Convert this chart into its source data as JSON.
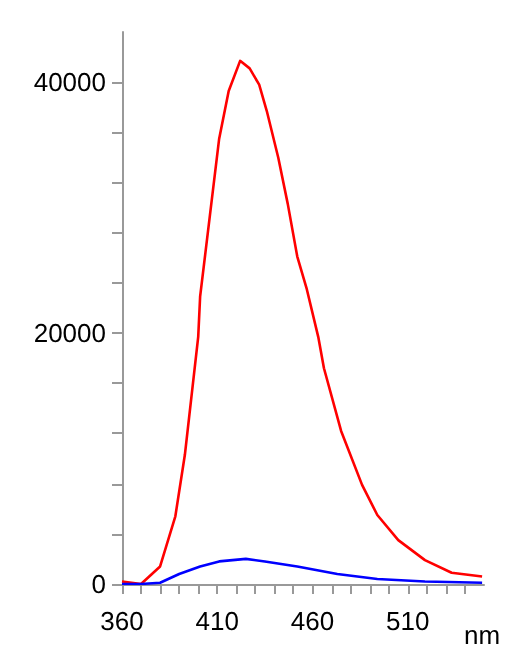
{
  "chart_data": {
    "type": "line",
    "xlabel": "nm",
    "x": [
      360,
      370,
      380,
      388,
      393,
      400,
      401,
      406,
      411,
      416,
      422,
      427,
      432,
      436,
      442,
      447,
      452,
      457,
      463,
      466,
      475,
      486,
      494,
      505,
      519,
      533,
      549
    ],
    "xlim": [
      360,
      550
    ],
    "ylim": [
      0,
      44000
    ],
    "xticks": [
      360,
      {
        "value": 370,
        "label": null
      },
      {
        "value": 380,
        "label": null
      },
      {
        "value": 390,
        "label": null
      },
      {
        "value": 400,
        "label": null
      },
      410,
      {
        "value": 420,
        "label": null
      },
      {
        "value": 430,
        "label": null
      },
      {
        "value": 440,
        "label": null
      },
      {
        "value": 450,
        "label": null
      },
      460,
      {
        "value": 470,
        "label": null
      },
      {
        "value": 480,
        "label": null
      },
      {
        "value": 490,
        "label": null
      },
      {
        "value": 500,
        "label": null
      },
      510,
      {
        "value": 520,
        "label": null
      },
      {
        "value": 530,
        "label": null
      },
      {
        "value": 540,
        "label": null
      }
    ],
    "yticks": [
      0,
      {
        "value": 4000,
        "label": null
      },
      {
        "value": 8000,
        "label": null
      },
      {
        "value": 12000,
        "label": null
      },
      {
        "value": 16000,
        "label": null
      },
      20000,
      {
        "value": 24000,
        "label": null
      },
      {
        "value": 28000,
        "label": null
      },
      {
        "value": 32000,
        "label": null
      },
      {
        "value": 36000,
        "label": null
      },
      40000
    ],
    "grid": false,
    "marker": "none",
    "line_style": "solid",
    "series": [
      {
        "color": "#ff0000",
        "values": [
          200,
          0,
          1400,
          5400,
          10300,
          19700,
          22900,
          29200,
          35500,
          39300,
          41700,
          41100,
          39800,
          37700,
          34000,
          30300,
          26100,
          23500,
          19700,
          17200,
          12200,
          7900,
          5500,
          3500,
          1900,
          900,
          600
        ]
      },
      {
        "color": "#0000ff",
        "x": [
          360,
          370,
          380,
          390,
          401,
          411,
          425,
          435,
          452,
          473,
          494,
          519,
          549
        ],
        "values": [
          0,
          0,
          100,
          800,
          1400,
          1800,
          2000,
          1800,
          1400,
          800,
          400,
          200,
          100
        ]
      }
    ]
  }
}
